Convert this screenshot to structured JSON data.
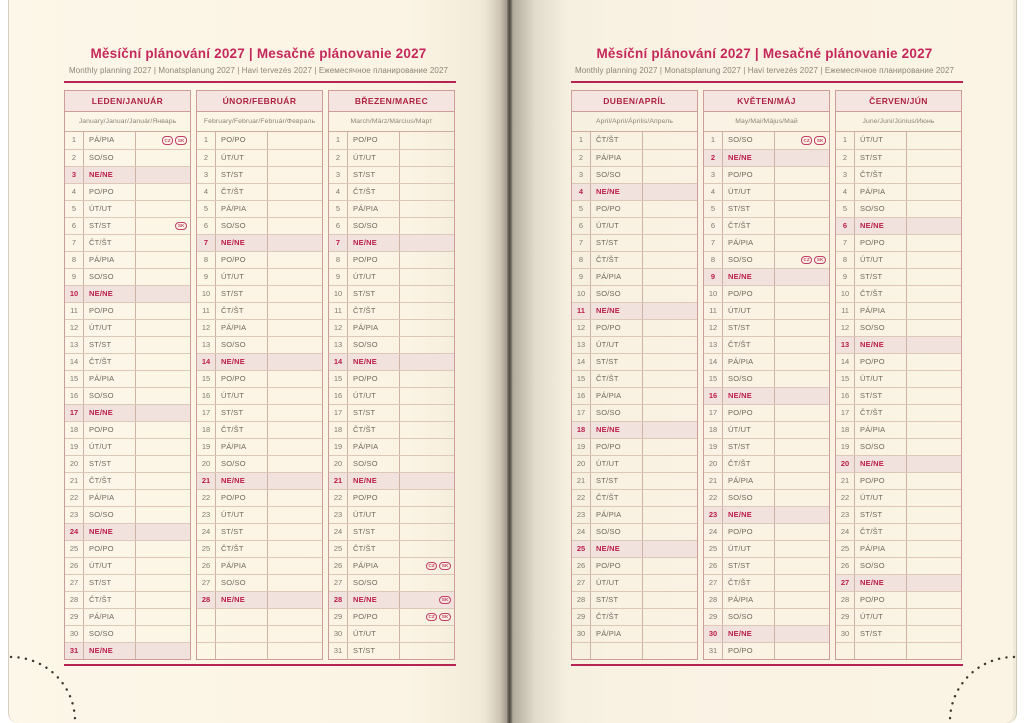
{
  "header": {
    "title": "Měsíční plánování 2027 | Mesačné plánovanie 2027",
    "subtitle": "Monthly planning 2027 | Monatsplanung 2027 | Havi tervezés 2027 | Ежемесячное планирование 2027"
  },
  "colors": {
    "accent_pink": "#c5285a",
    "rule_pink": "#b72352",
    "month_header_text": "#ae2242",
    "month_header_bg": "#f5e5e1",
    "sunday_text": "#bc1e48",
    "sunday_bg": "#f2e2dd",
    "badge_outline": "#c23e68",
    "page_cream": "#fbf4e3",
    "day_text": "#6f685c"
  },
  "weekday_abbreviations": [
    "PO/PO",
    "ÚT/UT",
    "ST/ST",
    "ČT/ŠT",
    "PÁ/PIA",
    "SO/SO",
    "NE/NE"
  ],
  "holiday_badge_labels": [
    "CZ",
    "SK"
  ],
  "months": [
    {
      "id": "leden-januar",
      "page": "left",
      "name": "LEDEN/JANUÁR",
      "languages": "January/Januar/Január/Январь",
      "days": [
        "PÁ/PIA",
        "SO/SO",
        "NE/NE",
        "PO/PO",
        "ÚT/UT",
        "ST/ST",
        "ČT/ŠT",
        "PÁ/PIA",
        "SO/SO",
        "NE/NE",
        "PO/PO",
        "ÚT/UT",
        "ST/ST",
        "ČT/ŠT",
        "PÁ/PIA",
        "SO/SO",
        "NE/NE",
        "PO/PO",
        "ÚT/UT",
        "ST/ST",
        "ČT/ŠT",
        "PÁ/PIA",
        "SO/SO",
        "NE/NE",
        "PO/PO",
        "ÚT/UT",
        "ST/ST",
        "ČT/ŠT",
        "PÁ/PIA",
        "SO/SO",
        "NE/NE"
      ],
      "blank_rows": 0,
      "badges": {
        "1": [
          "CZ",
          "SK"
        ],
        "6": [
          "SK"
        ]
      }
    },
    {
      "id": "unor-februar",
      "page": "left",
      "name": "ÚNOR/FEBRUÁR",
      "languages": "February/Februar/Február/Февраль",
      "days": [
        "PO/PO",
        "ÚT/UT",
        "ST/ST",
        "ČT/ŠT",
        "PÁ/PIA",
        "SO/SO",
        "NE/NE",
        "PO/PO",
        "ÚT/UT",
        "ST/ST",
        "ČT/ŠT",
        "PÁ/PIA",
        "SO/SO",
        "NE/NE",
        "PO/PO",
        "ÚT/UT",
        "ST/ST",
        "ČT/ŠT",
        "PÁ/PIA",
        "SO/SO",
        "NE/NE",
        "PO/PO",
        "ÚT/UT",
        "ST/ST",
        "ČT/ŠT",
        "PÁ/PIA",
        "SO/SO",
        "NE/NE"
      ],
      "blank_rows": 3,
      "badges": {}
    },
    {
      "id": "brezen-marec",
      "page": "left",
      "name": "BŘEZEN/MAREC",
      "languages": "March/März/Március/Март",
      "days": [
        "PO/PO",
        "ÚT/UT",
        "ST/ST",
        "ČT/ŠT",
        "PÁ/PIA",
        "SO/SO",
        "NE/NE",
        "PO/PO",
        "ÚT/UT",
        "ST/ST",
        "ČT/ŠT",
        "PÁ/PIA",
        "SO/SO",
        "NE/NE",
        "PO/PO",
        "ÚT/UT",
        "ST/ST",
        "ČT/ŠT",
        "PÁ/PIA",
        "SO/SO",
        "NE/NE",
        "PO/PO",
        "ÚT/UT",
        "ST/ST",
        "ČT/ŠT",
        "PÁ/PIA",
        "SO/SO",
        "NE/NE",
        "PO/PO",
        "ÚT/UT",
        "ST/ST"
      ],
      "blank_rows": 0,
      "badges": {
        "26": [
          "CZ",
          "SK"
        ],
        "28": [
          "SK"
        ],
        "29": [
          "CZ",
          "SK"
        ]
      }
    },
    {
      "id": "duben-april",
      "page": "right",
      "name": "DUBEN/APRÍL",
      "languages": "April/April/Április/Апрель",
      "days": [
        "ČT/ŠT",
        "PÁ/PIA",
        "SO/SO",
        "NE/NE",
        "PO/PO",
        "ÚT/UT",
        "ST/ST",
        "ČT/ŠT",
        "PÁ/PIA",
        "SO/SO",
        "NE/NE",
        "PO/PO",
        "ÚT/UT",
        "ST/ST",
        "ČT/ŠT",
        "PÁ/PIA",
        "SO/SO",
        "NE/NE",
        "PO/PO",
        "ÚT/UT",
        "ST/ST",
        "ČT/ŠT",
        "PÁ/PIA",
        "SO/SO",
        "NE/NE",
        "PO/PO",
        "ÚT/UT",
        "ST/ST",
        "ČT/ŠT",
        "PÁ/PIA"
      ],
      "blank_rows": 1,
      "badges": {}
    },
    {
      "id": "kveten-maj",
      "page": "right",
      "name": "KVĚTEN/MÁJ",
      "languages": "May/Mai/Május/Май",
      "days": [
        "SO/SO",
        "NE/NE",
        "PO/PO",
        "ÚT/UT",
        "ST/ST",
        "ČT/ŠT",
        "PÁ/PIA",
        "SO/SO",
        "NE/NE",
        "PO/PO",
        "ÚT/UT",
        "ST/ST",
        "ČT/ŠT",
        "PÁ/PIA",
        "SO/SO",
        "NE/NE",
        "PO/PO",
        "ÚT/UT",
        "ST/ST",
        "ČT/ŠT",
        "PÁ/PIA",
        "SO/SO",
        "NE/NE",
        "PO/PO",
        "ÚT/UT",
        "ST/ST",
        "ČT/ŠT",
        "PÁ/PIA",
        "SO/SO",
        "NE/NE",
        "PO/PO"
      ],
      "blank_rows": 0,
      "badges": {
        "1": [
          "CZ",
          "SK"
        ],
        "8": [
          "CZ",
          "SK"
        ]
      }
    },
    {
      "id": "cerven-jun",
      "page": "right",
      "name": "ČERVEN/JÚN",
      "languages": "June/Juni/Június/Июнь",
      "days": [
        "ÚT/UT",
        "ST/ST",
        "ČT/ŠT",
        "PÁ/PIA",
        "SO/SO",
        "NE/NE",
        "PO/PO",
        "ÚT/UT",
        "ST/ST",
        "ČT/ŠT",
        "PÁ/PIA",
        "SO/SO",
        "NE/NE",
        "PO/PO",
        "ÚT/UT",
        "ST/ST",
        "ČT/ŠT",
        "PÁ/PIA",
        "SO/SO",
        "NE/NE",
        "PO/PO",
        "ÚT/UT",
        "ST/ST",
        "ČT/ŠT",
        "PÁ/PIA",
        "SO/SO",
        "NE/NE",
        "PO/PO",
        "ÚT/UT",
        "ST/ST"
      ],
      "blank_rows": 1,
      "badges": {}
    }
  ]
}
